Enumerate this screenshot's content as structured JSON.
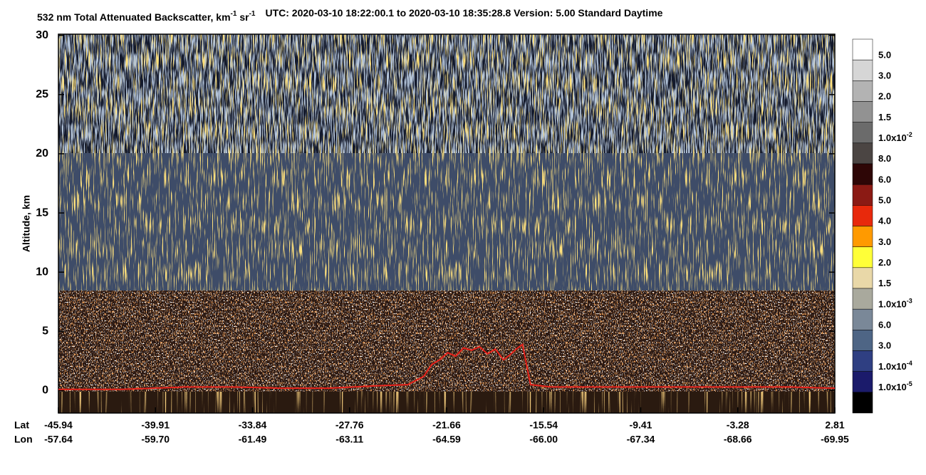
{
  "chart_data": {
    "type": "curtain",
    "title": [
      "532 nm Total Attenuated Backscatter, km",
      "-1",
      " sr",
      "-1"
    ],
    "subtitle": "UTC:  2020-03-10 18:22:00.1  to  2020-03-10 18:35:28.8    Version: 5.00  Standard  Daytime",
    "ylabel": "Altitude, km",
    "ylim": [
      -1.9,
      30.1
    ],
    "yticks": [
      0,
      5,
      10,
      15,
      20,
      25,
      30
    ],
    "row_labels": [
      "Lat",
      "Lon"
    ],
    "categories": [
      "-45.94",
      "-39.91",
      "-33.84",
      "-27.76",
      "-21.66",
      "-15.54",
      "-9.41",
      "-3.28",
      "2.81"
    ],
    "lon": [
      "-57.64",
      "-59.70",
      "-61.49",
      "-63.11",
      "-64.59",
      "-66.00",
      "-67.34",
      "-68.66",
      "-69.95"
    ],
    "xlim": [
      -45.94,
      2.81
    ],
    "surface": {
      "color": "#e8221b",
      "x": [
        -45.94,
        -42,
        -38,
        -35,
        -32,
        -29,
        -26,
        -24,
        -23,
        -22.5,
        -22,
        -21.5,
        -21,
        -20.5,
        -20,
        -19.5,
        -19,
        -18.5,
        -18,
        -17.6,
        -17.2,
        -16.8,
        -16.3,
        -15,
        -10,
        -5,
        0,
        2.81
      ],
      "values": [
        0.1,
        0.1,
        0.3,
        0.3,
        0.2,
        0.2,
        0.4,
        0.5,
        1.2,
        2.2,
        2.6,
        3.2,
        2.9,
        3.6,
        3.4,
        3.7,
        3.1,
        3.5,
        2.6,
        3.0,
        3.5,
        3.9,
        0.5,
        0.3,
        0.3,
        0.3,
        0.3,
        0.2
      ]
    },
    "colorbar": {
      "colors": [
        "#ffffff",
        "#d6d6d6",
        "#b3b3b3",
        "#929292",
        "#6b6b6b",
        "#4b4543",
        "#2e0606",
        "#8b1a14",
        "#e8290c",
        "#ff9a00",
        "#ffff38",
        "#e9d8a8",
        "#a9a99d",
        "#7a8898",
        "#4e6585",
        "#2f3f82",
        "#1b1b6b",
        "#000000"
      ],
      "labels": [
        {
          "text": "5.0"
        },
        {
          "text": "3.0"
        },
        {
          "text": "2.0"
        },
        {
          "text": "1.5"
        },
        {
          "text": "1.0x10",
          "exp": "-2"
        },
        {
          "text": "8.0"
        },
        {
          "text": "6.0"
        },
        {
          "text": "5.0"
        },
        {
          "text": "4.0"
        },
        {
          "text": "3.0"
        },
        {
          "text": "2.0"
        },
        {
          "text": "1.5"
        },
        {
          "text": "1.0x10",
          "exp": "-3"
        },
        {
          "text": "6.0"
        },
        {
          "text": "3.0"
        },
        {
          "text": "1.0x10",
          "exp": "-4"
        },
        {
          "text": "1.0x10",
          "exp": "-5"
        }
      ]
    }
  }
}
